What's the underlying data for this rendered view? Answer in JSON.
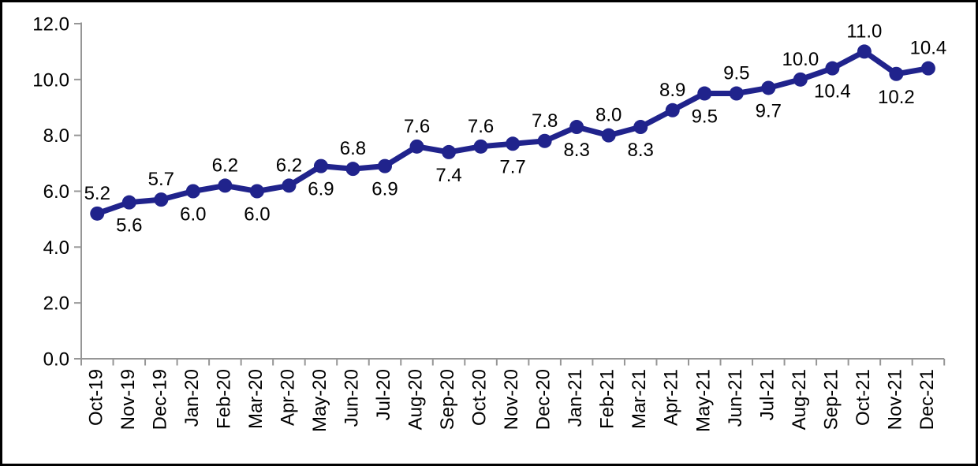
{
  "chart_data": {
    "type": "line",
    "title": "",
    "xlabel": "",
    "ylabel": "",
    "categories": [
      "Oct-19",
      "Nov-19",
      "Dec-19",
      "Jan-20",
      "Feb-20",
      "Mar-20",
      "Apr-20",
      "May-20",
      "Jun-20",
      "Jul-20",
      "Aug-20",
      "Sep-20",
      "Oct-20",
      "Nov-20",
      "Dec-20",
      "Jan-21",
      "Feb-21",
      "Mar-21",
      "Apr-21",
      "May-21",
      "Jun-21",
      "Jul-21",
      "Aug-21",
      "Sep-21",
      "Oct-21",
      "Nov-21",
      "Dec-21"
    ],
    "values": [
      5.2,
      5.6,
      5.7,
      6.0,
      6.2,
      6.0,
      6.2,
      6.9,
      6.8,
      6.9,
      7.6,
      7.4,
      7.6,
      7.7,
      7.8,
      8.3,
      8.0,
      8.3,
      8.9,
      9.5,
      9.5,
      9.7,
      10.0,
      10.4,
      11.0,
      10.2,
      10.4
    ],
    "data_label_format": "one-decimal",
    "data_label_placement": "alternating-start-above",
    "ylim": [
      0,
      12
    ],
    "ytick_step": 2,
    "ytick_labels": [
      "0.0",
      "2.0",
      "4.0",
      "6.0",
      "8.0",
      "10.0",
      "12.0"
    ],
    "xtick_rotation_deg": -90,
    "grid": false,
    "legend": false,
    "colors": {
      "line": "#20238C",
      "marker": "#20238C",
      "axis": "#969696",
      "text": "#000000",
      "background": "#FFFFFF",
      "frame_border": "#000000"
    }
  }
}
